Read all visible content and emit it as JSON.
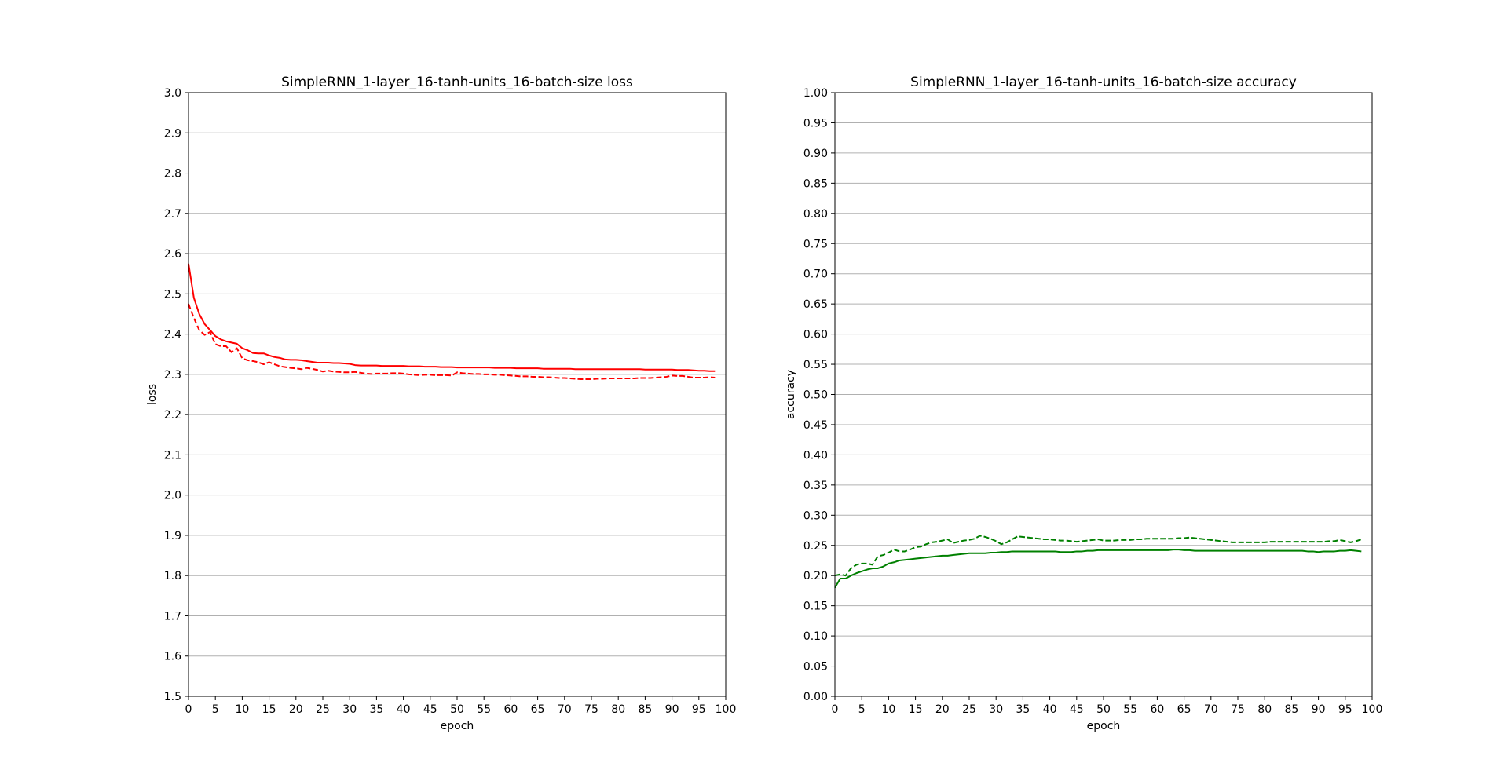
{
  "figure": {
    "background": "#ffffff"
  },
  "chart_data": [
    {
      "type": "line",
      "title": "SimpleRNN_1-layer_16-tanh-units_16-batch-size loss",
      "xlabel": "epoch",
      "ylabel": "loss",
      "xlim": [
        0,
        100
      ],
      "ylim": [
        1.5,
        3.0
      ],
      "xticks": [
        0,
        5,
        10,
        15,
        20,
        25,
        30,
        35,
        40,
        45,
        50,
        55,
        60,
        65,
        70,
        75,
        80,
        85,
        90,
        95,
        100
      ],
      "xtick_labels": [
        "0",
        "5",
        "10",
        "15",
        "20",
        "25",
        "30",
        "35",
        "40",
        "45",
        "50",
        "55",
        "60",
        "65",
        "70",
        "75",
        "80",
        "85",
        "90",
        "95",
        "100"
      ],
      "yticks": [
        1.5,
        1.6,
        1.7,
        1.8,
        1.9,
        2.0,
        2.1,
        2.2,
        2.3,
        2.4,
        2.5,
        2.6,
        2.7,
        2.8,
        2.9,
        3.0
      ],
      "ytick_labels": [
        "1.5",
        "1.6",
        "1.7",
        "1.8",
        "1.9",
        "2.0",
        "2.1",
        "2.2",
        "2.3",
        "2.4",
        "2.5",
        "2.6",
        "2.7",
        "2.8",
        "2.9",
        "3.0"
      ],
      "grid": "horizontal",
      "series": [
        {
          "color": "#ff0000",
          "dash": "solid",
          "x": [
            0,
            1,
            2,
            3,
            4,
            5,
            6,
            7,
            8,
            9,
            10,
            11,
            12,
            13,
            14,
            15,
            16,
            17,
            18,
            19,
            20,
            21,
            22,
            23,
            24,
            25,
            26,
            27,
            28,
            29,
            30,
            31,
            32,
            33,
            34,
            35,
            36,
            37,
            38,
            39,
            40,
            41,
            42,
            43,
            44,
            45,
            46,
            47,
            48,
            49,
            50,
            51,
            52,
            53,
            54,
            55,
            56,
            57,
            58,
            59,
            60,
            61,
            62,
            63,
            64,
            65,
            66,
            67,
            68,
            69,
            70,
            71,
            72,
            73,
            74,
            75,
            76,
            77,
            78,
            79,
            80,
            81,
            82,
            83,
            84,
            85,
            86,
            87,
            88,
            89,
            90,
            91,
            92,
            93,
            94,
            95,
            96,
            97,
            98
          ],
          "values": [
            2.575,
            2.49,
            2.45,
            2.425,
            2.41,
            2.395,
            2.387,
            2.382,
            2.379,
            2.376,
            2.365,
            2.36,
            2.353,
            2.352,
            2.352,
            2.347,
            2.343,
            2.341,
            2.337,
            2.336,
            2.336,
            2.335,
            2.333,
            2.331,
            2.329,
            2.329,
            2.329,
            2.328,
            2.328,
            2.327,
            2.326,
            2.323,
            2.322,
            2.322,
            2.322,
            2.322,
            2.321,
            2.321,
            2.321,
            2.321,
            2.321,
            2.32,
            2.32,
            2.32,
            2.319,
            2.319,
            2.319,
            2.318,
            2.318,
            2.318,
            2.317,
            2.317,
            2.317,
            2.317,
            2.317,
            2.317,
            2.317,
            2.316,
            2.316,
            2.316,
            2.316,
            2.315,
            2.315,
            2.315,
            2.315,
            2.315,
            2.314,
            2.314,
            2.314,
            2.314,
            2.314,
            2.314,
            2.313,
            2.313,
            2.313,
            2.313,
            2.313,
            2.313,
            2.313,
            2.313,
            2.313,
            2.313,
            2.313,
            2.313,
            2.313,
            2.312,
            2.312,
            2.312,
            2.312,
            2.312,
            2.312,
            2.311,
            2.311,
            2.311,
            2.31,
            2.309,
            2.309,
            2.308,
            2.308
          ]
        },
        {
          "color": "#ff0000",
          "dash": "dashed",
          "x": [
            0,
            1,
            2,
            3,
            4,
            5,
            6,
            7,
            8,
            9,
            10,
            11,
            12,
            13,
            14,
            15,
            16,
            17,
            18,
            19,
            20,
            21,
            22,
            23,
            24,
            25,
            26,
            27,
            28,
            29,
            30,
            31,
            32,
            33,
            34,
            35,
            36,
            37,
            38,
            39,
            40,
            41,
            42,
            43,
            44,
            45,
            46,
            47,
            48,
            49,
            50,
            51,
            52,
            53,
            54,
            55,
            56,
            57,
            58,
            59,
            60,
            61,
            62,
            63,
            64,
            65,
            66,
            67,
            68,
            69,
            70,
            71,
            72,
            73,
            74,
            75,
            76,
            77,
            78,
            79,
            80,
            81,
            82,
            83,
            84,
            85,
            86,
            87,
            88,
            89,
            90,
            91,
            92,
            93,
            94,
            95,
            96,
            97,
            98
          ],
          "values": [
            2.475,
            2.44,
            2.41,
            2.398,
            2.405,
            2.375,
            2.37,
            2.37,
            2.355,
            2.365,
            2.34,
            2.335,
            2.333,
            2.33,
            2.325,
            2.33,
            2.325,
            2.32,
            2.318,
            2.316,
            2.315,
            2.313,
            2.316,
            2.314,
            2.311,
            2.307,
            2.309,
            2.307,
            2.306,
            2.305,
            2.305,
            2.306,
            2.304,
            2.302,
            2.301,
            2.302,
            2.302,
            2.302,
            2.303,
            2.303,
            2.302,
            2.3,
            2.299,
            2.298,
            2.299,
            2.299,
            2.298,
            2.298,
            2.298,
            2.297,
            2.305,
            2.303,
            2.302,
            2.301,
            2.301,
            2.3,
            2.3,
            2.299,
            2.299,
            2.298,
            2.297,
            2.296,
            2.295,
            2.295,
            2.294,
            2.294,
            2.293,
            2.293,
            2.292,
            2.291,
            2.291,
            2.29,
            2.289,
            2.288,
            2.288,
            2.288,
            2.289,
            2.289,
            2.29,
            2.29,
            2.29,
            2.29,
            2.29,
            2.29,
            2.291,
            2.291,
            2.291,
            2.292,
            2.293,
            2.294,
            2.297,
            2.296,
            2.296,
            2.294,
            2.292,
            2.292,
            2.292,
            2.293,
            2.292
          ]
        }
      ]
    },
    {
      "type": "line",
      "title": "SimpleRNN_1-layer_16-tanh-units_16-batch-size accuracy",
      "xlabel": "epoch",
      "ylabel": "accuracy",
      "xlim": [
        0,
        100
      ],
      "ylim": [
        0.0,
        1.0
      ],
      "xticks": [
        0,
        5,
        10,
        15,
        20,
        25,
        30,
        35,
        40,
        45,
        50,
        55,
        60,
        65,
        70,
        75,
        80,
        85,
        90,
        95,
        100
      ],
      "xtick_labels": [
        "0",
        "5",
        "10",
        "15",
        "20",
        "25",
        "30",
        "35",
        "40",
        "45",
        "50",
        "55",
        "60",
        "65",
        "70",
        "75",
        "80",
        "85",
        "90",
        "95",
        "100"
      ],
      "yticks": [
        0.0,
        0.05,
        0.1,
        0.15,
        0.2,
        0.25,
        0.3,
        0.35,
        0.4,
        0.45,
        0.5,
        0.55,
        0.6,
        0.65,
        0.7,
        0.75,
        0.8,
        0.85,
        0.9,
        0.95,
        1.0
      ],
      "ytick_labels": [
        "0.00",
        "0.05",
        "0.10",
        "0.15",
        "0.20",
        "0.25",
        "0.30",
        "0.35",
        "0.40",
        "0.45",
        "0.50",
        "0.55",
        "0.60",
        "0.65",
        "0.70",
        "0.75",
        "0.80",
        "0.85",
        "0.90",
        "0.95",
        "1.00"
      ],
      "grid": "horizontal",
      "series": [
        {
          "color": "#008000",
          "dash": "solid",
          "x": [
            0,
            1,
            2,
            3,
            4,
            5,
            6,
            7,
            8,
            9,
            10,
            11,
            12,
            13,
            14,
            15,
            16,
            17,
            18,
            19,
            20,
            21,
            22,
            23,
            24,
            25,
            26,
            27,
            28,
            29,
            30,
            31,
            32,
            33,
            34,
            35,
            36,
            37,
            38,
            39,
            40,
            41,
            42,
            43,
            44,
            45,
            46,
            47,
            48,
            49,
            50,
            51,
            52,
            53,
            54,
            55,
            56,
            57,
            58,
            59,
            60,
            61,
            62,
            63,
            64,
            65,
            66,
            67,
            68,
            69,
            70,
            71,
            72,
            73,
            74,
            75,
            76,
            77,
            78,
            79,
            80,
            81,
            82,
            83,
            84,
            85,
            86,
            87,
            88,
            89,
            90,
            91,
            92,
            93,
            94,
            95,
            96,
            97,
            98
          ],
          "values": [
            0.18,
            0.195,
            0.195,
            0.2,
            0.204,
            0.207,
            0.21,
            0.212,
            0.212,
            0.215,
            0.22,
            0.222,
            0.225,
            0.226,
            0.227,
            0.228,
            0.229,
            0.23,
            0.231,
            0.232,
            0.233,
            0.233,
            0.234,
            0.235,
            0.236,
            0.237,
            0.237,
            0.237,
            0.237,
            0.238,
            0.238,
            0.239,
            0.239,
            0.24,
            0.24,
            0.24,
            0.24,
            0.24,
            0.24,
            0.24,
            0.24,
            0.24,
            0.239,
            0.239,
            0.239,
            0.24,
            0.24,
            0.241,
            0.241,
            0.242,
            0.242,
            0.242,
            0.242,
            0.242,
            0.242,
            0.242,
            0.242,
            0.242,
            0.242,
            0.242,
            0.242,
            0.242,
            0.242,
            0.243,
            0.243,
            0.242,
            0.242,
            0.241,
            0.241,
            0.241,
            0.241,
            0.241,
            0.241,
            0.241,
            0.241,
            0.241,
            0.241,
            0.241,
            0.241,
            0.241,
            0.241,
            0.241,
            0.241,
            0.241,
            0.241,
            0.241,
            0.241,
            0.241,
            0.24,
            0.24,
            0.239,
            0.24,
            0.24,
            0.24,
            0.241,
            0.241,
            0.242,
            0.241,
            0.24
          ]
        },
        {
          "color": "#008000",
          "dash": "dashed",
          "x": [
            0,
            1,
            2,
            3,
            4,
            5,
            6,
            7,
            8,
            9,
            10,
            11,
            12,
            13,
            14,
            15,
            16,
            17,
            18,
            19,
            20,
            21,
            22,
            23,
            24,
            25,
            26,
            27,
            28,
            29,
            30,
            31,
            32,
            33,
            34,
            35,
            36,
            37,
            38,
            39,
            40,
            41,
            42,
            43,
            44,
            45,
            46,
            47,
            48,
            49,
            50,
            51,
            52,
            53,
            54,
            55,
            56,
            57,
            58,
            59,
            60,
            61,
            62,
            63,
            64,
            65,
            66,
            67,
            68,
            69,
            70,
            71,
            72,
            73,
            74,
            75,
            76,
            77,
            78,
            79,
            80,
            81,
            82,
            83,
            84,
            85,
            86,
            87,
            88,
            89,
            90,
            91,
            92,
            93,
            94,
            95,
            96,
            97,
            98
          ],
          "values": [
            0.2,
            0.202,
            0.2,
            0.212,
            0.218,
            0.22,
            0.22,
            0.218,
            0.232,
            0.234,
            0.238,
            0.243,
            0.24,
            0.24,
            0.243,
            0.247,
            0.248,
            0.252,
            0.255,
            0.256,
            0.258,
            0.26,
            0.254,
            0.256,
            0.258,
            0.259,
            0.261,
            0.266,
            0.264,
            0.261,
            0.257,
            0.252,
            0.255,
            0.26,
            0.265,
            0.264,
            0.263,
            0.262,
            0.261,
            0.26,
            0.26,
            0.259,
            0.258,
            0.258,
            0.257,
            0.256,
            0.257,
            0.258,
            0.259,
            0.26,
            0.258,
            0.258,
            0.258,
            0.259,
            0.259,
            0.259,
            0.26,
            0.26,
            0.261,
            0.261,
            0.261,
            0.261,
            0.261,
            0.261,
            0.262,
            0.262,
            0.263,
            0.262,
            0.261,
            0.26,
            0.259,
            0.258,
            0.257,
            0.256,
            0.255,
            0.255,
            0.255,
            0.255,
            0.255,
            0.255,
            0.255,
            0.256,
            0.256,
            0.256,
            0.256,
            0.256,
            0.256,
            0.256,
            0.256,
            0.256,
            0.256,
            0.256,
            0.257,
            0.257,
            0.259,
            0.257,
            0.255,
            0.257,
            0.26
          ]
        }
      ]
    }
  ]
}
